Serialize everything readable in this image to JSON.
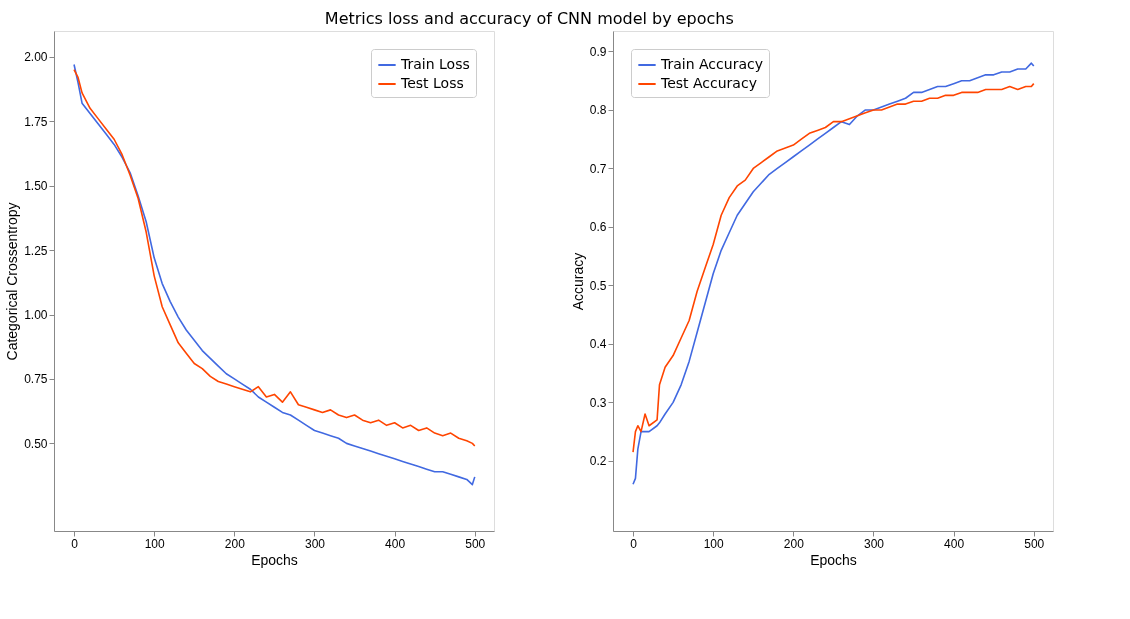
{
  "chart_data": [
    {
      "type": "line",
      "title": "Metrics loss and accuracy of CNN model by epochs",
      "xlabel": "Epochs",
      "ylabel": "Categorical Crossentropy",
      "legend": "top right",
      "grid": false,
      "line_style": "solid",
      "marker": "none",
      "xlim": [
        -25,
        524
      ],
      "xticks": [
        0,
        100,
        200,
        300,
        400,
        500
      ],
      "ylim": [
        0.16,
        2.1
      ],
      "yticks": [
        {
          "value": 0.5,
          "label": "0.50"
        },
        {
          "value": 0.75,
          "label": "0.75"
        },
        {
          "value": 1.0,
          "label": "1.00"
        },
        {
          "value": 1.25,
          "label": "1.25"
        },
        {
          "value": 1.5,
          "label": "1.50"
        },
        {
          "value": 1.75,
          "label": "1.75"
        },
        {
          "value": 2.0,
          "label": "2.00"
        }
      ],
      "x": [
        0,
        5,
        10,
        20,
        30,
        40,
        50,
        60,
        70,
        80,
        90,
        100,
        110,
        120,
        130,
        140,
        150,
        160,
        170,
        180,
        190,
        200,
        210,
        220,
        230,
        240,
        250,
        260,
        270,
        280,
        290,
        300,
        310,
        320,
        330,
        340,
        350,
        360,
        370,
        380,
        390,
        400,
        410,
        420,
        430,
        440,
        450,
        460,
        470,
        480,
        490,
        497,
        500
      ],
      "series": [
        {
          "name": "Train Loss",
          "color": "#4169e1",
          "values": [
            1.97,
            1.9,
            1.82,
            1.78,
            1.74,
            1.7,
            1.66,
            1.61,
            1.55,
            1.46,
            1.36,
            1.22,
            1.12,
            1.05,
            0.99,
            0.94,
            0.9,
            0.86,
            0.83,
            0.8,
            0.77,
            0.75,
            0.73,
            0.71,
            0.68,
            0.66,
            0.64,
            0.62,
            0.61,
            0.59,
            0.57,
            0.55,
            0.54,
            0.53,
            0.52,
            0.5,
            0.49,
            0.48,
            0.47,
            0.46,
            0.45,
            0.44,
            0.43,
            0.42,
            0.41,
            0.4,
            0.39,
            0.39,
            0.38,
            0.37,
            0.36,
            0.34,
            0.37
          ]
        },
        {
          "name": "Test Loss",
          "color": "#ff4500",
          "values": [
            1.95,
            1.92,
            1.86,
            1.8,
            1.76,
            1.72,
            1.68,
            1.62,
            1.54,
            1.45,
            1.32,
            1.15,
            1.03,
            0.96,
            0.89,
            0.85,
            0.81,
            0.79,
            0.76,
            0.74,
            0.73,
            0.72,
            0.71,
            0.7,
            0.72,
            0.68,
            0.69,
            0.66,
            0.7,
            0.65,
            0.64,
            0.63,
            0.62,
            0.63,
            0.61,
            0.6,
            0.61,
            0.59,
            0.58,
            0.59,
            0.57,
            0.58,
            0.56,
            0.57,
            0.55,
            0.56,
            0.54,
            0.53,
            0.54,
            0.52,
            0.51,
            0.5,
            0.49
          ]
        }
      ]
    },
    {
      "type": "line",
      "xlabel": "Epochs",
      "ylabel": "Accuracy",
      "legend": "top left",
      "grid": false,
      "line_style": "solid",
      "marker": "none",
      "xlim": [
        -25,
        524
      ],
      "xticks": [
        0,
        100,
        200,
        300,
        400,
        500
      ],
      "ylim": [
        0.08,
        0.935
      ],
      "yticks": [
        0.2,
        0.3,
        0.4,
        0.5,
        0.6,
        0.7,
        0.8,
        0.9
      ],
      "x": [
        0,
        3,
        6,
        10,
        15,
        20,
        30,
        33,
        40,
        50,
        60,
        70,
        80,
        90,
        100,
        110,
        120,
        130,
        140,
        150,
        160,
        170,
        180,
        190,
        200,
        210,
        220,
        230,
        240,
        250,
        260,
        270,
        280,
        290,
        300,
        310,
        320,
        330,
        340,
        350,
        360,
        370,
        380,
        390,
        400,
        410,
        420,
        430,
        440,
        450,
        460,
        470,
        480,
        490,
        497,
        500
      ],
      "series": [
        {
          "name": "Train Accuracy",
          "color": "#4169e1",
          "values": [
            0.16,
            0.17,
            0.22,
            0.25,
            0.25,
            0.25,
            0.26,
            0.265,
            0.28,
            0.3,
            0.33,
            0.37,
            0.42,
            0.47,
            0.52,
            0.56,
            0.59,
            0.62,
            0.64,
            0.66,
            0.675,
            0.69,
            0.7,
            0.71,
            0.72,
            0.73,
            0.74,
            0.75,
            0.76,
            0.77,
            0.78,
            0.775,
            0.79,
            0.8,
            0.8,
            0.805,
            0.81,
            0.815,
            0.82,
            0.83,
            0.83,
            0.835,
            0.84,
            0.84,
            0.845,
            0.85,
            0.85,
            0.855,
            0.86,
            0.86,
            0.865,
            0.865,
            0.87,
            0.87,
            0.88,
            0.875
          ]
        },
        {
          "name": "Test Accuracy",
          "color": "#ff4500",
          "values": [
            0.215,
            0.25,
            0.26,
            0.25,
            0.28,
            0.26,
            0.27,
            0.33,
            0.36,
            0.38,
            0.41,
            0.44,
            0.49,
            0.53,
            0.57,
            0.62,
            0.65,
            0.67,
            0.68,
            0.7,
            0.71,
            0.72,
            0.73,
            0.735,
            0.74,
            0.75,
            0.76,
            0.765,
            0.77,
            0.78,
            0.78,
            0.785,
            0.79,
            0.795,
            0.8,
            0.8,
            0.805,
            0.81,
            0.81,
            0.815,
            0.815,
            0.82,
            0.82,
            0.825,
            0.825,
            0.83,
            0.83,
            0.83,
            0.835,
            0.835,
            0.835,
            0.84,
            0.835,
            0.84,
            0.84,
            0.845
          ]
        }
      ]
    }
  ]
}
